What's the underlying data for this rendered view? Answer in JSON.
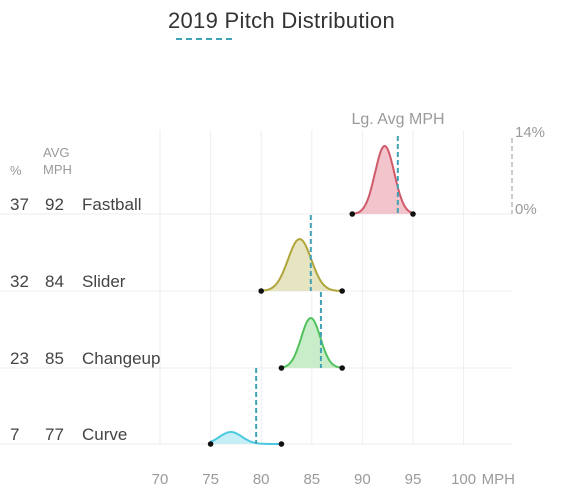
{
  "chart_data": {
    "type": "ridgeline",
    "title": "2019 Pitch Distribution",
    "legend": "Lg. Avg MPH",
    "headers": {
      "pct": "%",
      "avg_line1": "AVG",
      "avg_line2": "MPH"
    },
    "scale": {
      "top_label": "14%",
      "bottom_label": "0%"
    },
    "x_axis": {
      "ticks": [
        70,
        75,
        80,
        85,
        90,
        95,
        100
      ],
      "unit": "MPH",
      "range": [
        68,
        105
      ]
    },
    "pitches": [
      {
        "name": "Fastball",
        "pct": "37",
        "avg": "92",
        "color": "#d05a6a",
        "fill": "#f2c4cb",
        "min": 89,
        "max": 95,
        "peak": 92.2,
        "spread": 0.95,
        "lg_avg": 93.5
      },
      {
        "name": "Slider",
        "pct": "32",
        "avg": "84",
        "color": "#b0a53a",
        "fill": "#e7e4c2",
        "min": 80,
        "max": 88,
        "peak": 83.8,
        "spread": 1.15,
        "lg_avg": 84.9
      },
      {
        "name": "Changeup",
        "pct": "23",
        "avg": "85",
        "color": "#52c25e",
        "fill": "#c9ecc9",
        "min": 82,
        "max": 88,
        "peak": 84.9,
        "spread": 0.95,
        "lg_avg": 85.9
      },
      {
        "name": "Curve",
        "pct": "7",
        "avg": "77",
        "color": "#4cc8e0",
        "fill": "#c6eef6",
        "min": 75,
        "max": 82,
        "peak": 77.0,
        "spread": 1.1,
        "lg_avg": 79.5
      }
    ]
  }
}
